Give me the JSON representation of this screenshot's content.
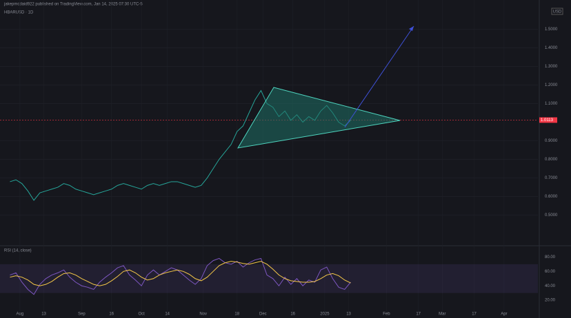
{
  "header": "jakepmcdaid922 published on TradingView.com, Jan 14, 2025 07:30 UTC-5",
  "currency": "USD",
  "chart_data": [
    {
      "type": "line",
      "title": "HBARUSD · 1D",
      "x": [
        -5,
        -2,
        1,
        4,
        7,
        10,
        13,
        16,
        19,
        22,
        25,
        28,
        31,
        34,
        37,
        40,
        43,
        46,
        49,
        52,
        55,
        58,
        61,
        64,
        67,
        70,
        73,
        76,
        79,
        82,
        85,
        88,
        91,
        94,
        97,
        100,
        103,
        106,
        109,
        112,
        115,
        118,
        121,
        124,
        127,
        130,
        133,
        136,
        139,
        142,
        145,
        148,
        151,
        154,
        157,
        160,
        163,
        166
      ],
      "series": [
        {
          "color": "#26a69a",
          "values": [
            0.68,
            0.69,
            0.67,
            0.63,
            0.58,
            0.62,
            0.63,
            0.64,
            0.65,
            0.67,
            0.66,
            0.64,
            0.63,
            0.62,
            0.61,
            0.62,
            0.63,
            0.64,
            0.66,
            0.67,
            0.66,
            0.65,
            0.64,
            0.66,
            0.67,
            0.66,
            0.67,
            0.68,
            0.68,
            0.67,
            0.66,
            0.65,
            0.66,
            0.7,
            0.75,
            0.8,
            0.84,
            0.88,
            0.95,
            0.98,
            1.05,
            1.12,
            1.17,
            1.1,
            1.08,
            1.03,
            1.06,
            1.01,
            1.04,
            1.0,
            1.03,
            1.01,
            1.06,
            1.09,
            1.05,
            1.0,
            0.98,
            1.01
          ]
        }
      ],
      "xlim": [
        -10,
        260
      ],
      "xticks": [
        {
          "value": 0,
          "label": "Aug"
        },
        {
          "value": 12,
          "label": "13"
        },
        {
          "value": 31,
          "label": "Sep"
        },
        {
          "value": 46,
          "label": "16"
        },
        {
          "value": 61,
          "label": "Oct"
        },
        {
          "value": 74,
          "label": "14"
        },
        {
          "value": 92,
          "label": "Nov"
        },
        {
          "value": 109,
          "label": "18"
        },
        {
          "value": 122,
          "label": "Dec"
        },
        {
          "value": 137,
          "label": "16"
        },
        {
          "value": 153,
          "label": "2025"
        },
        {
          "value": 165,
          "label": "13"
        },
        {
          "value": 184,
          "label": "Feb"
        },
        {
          "value": 200,
          "label": "17"
        },
        {
          "value": 212,
          "label": "Mar"
        },
        {
          "value": 228,
          "label": "17"
        },
        {
          "value": 243,
          "label": "Apr"
        }
      ],
      "ylim": [
        0.38,
        1.62
      ],
      "yticks": [
        {
          "value": 0.5,
          "label": "0.5000"
        },
        {
          "value": 0.6,
          "label": "0.6000"
        },
        {
          "value": 0.7,
          "label": "0.7000"
        },
        {
          "value": 0.8,
          "label": "0.8000"
        },
        {
          "value": 0.9,
          "label": "0.9000"
        },
        {
          "value": 1.1,
          "label": "1.1000"
        },
        {
          "value": 1.2,
          "label": "1.2000"
        },
        {
          "value": 1.3,
          "label": "1.3000"
        },
        {
          "value": 1.4,
          "label": "1.4000"
        },
        {
          "value": 1.5,
          "label": "1.5000"
        }
      ],
      "current_price": {
        "value": 1.0113,
        "label": "1.0113"
      },
      "grid": true
    },
    {
      "type": "line",
      "title": "RSI (14, close)",
      "x": [
        -5,
        -2,
        1,
        4,
        7,
        10,
        13,
        16,
        19,
        22,
        25,
        28,
        31,
        34,
        37,
        40,
        43,
        46,
        49,
        52,
        55,
        58,
        61,
        64,
        67,
        70,
        73,
        76,
        79,
        82,
        85,
        88,
        91,
        94,
        97,
        100,
        103,
        106,
        109,
        112,
        115,
        118,
        121,
        124,
        127,
        130,
        133,
        136,
        139,
        142,
        145,
        148,
        151,
        154,
        157,
        160,
        163,
        166
      ],
      "series": [
        {
          "color": "#7e57c2",
          "values": [
            55,
            58,
            45,
            35,
            28,
            42,
            50,
            55,
            58,
            62,
            52,
            45,
            40,
            38,
            35,
            45,
            52,
            58,
            65,
            68,
            55,
            48,
            40,
            55,
            62,
            55,
            60,
            65,
            62,
            55,
            48,
            42,
            50,
            68,
            75,
            78,
            72,
            70,
            74,
            66,
            72,
            76,
            78,
            55,
            50,
            40,
            52,
            42,
            50,
            40,
            48,
            45,
            62,
            66,
            50,
            38,
            35,
            45
          ]
        },
        {
          "color": "#f7c948",
          "values": [
            52,
            54,
            52,
            48,
            42,
            40,
            42,
            46,
            52,
            57,
            58,
            55,
            50,
            46,
            42,
            40,
            42,
            47,
            53,
            60,
            62,
            58,
            52,
            48,
            50,
            55,
            58,
            60,
            62,
            60,
            56,
            50,
            47,
            52,
            60,
            68,
            72,
            74,
            73,
            71,
            70,
            72,
            74,
            70,
            63,
            55,
            50,
            47,
            46,
            45,
            45,
            46,
            50,
            55,
            57,
            54,
            48,
            44
          ]
        }
      ],
      "xlim": [
        -10,
        260
      ],
      "ylim": [
        2,
        88
      ],
      "band": [
        30,
        70
      ],
      "yticks": [
        {
          "value": 20,
          "label": "20.00"
        },
        {
          "value": 40,
          "label": "40.00"
        },
        {
          "value": 60,
          "label": "60.00"
        },
        {
          "value": 80,
          "label": "80.00"
        }
      ]
    }
  ]
}
